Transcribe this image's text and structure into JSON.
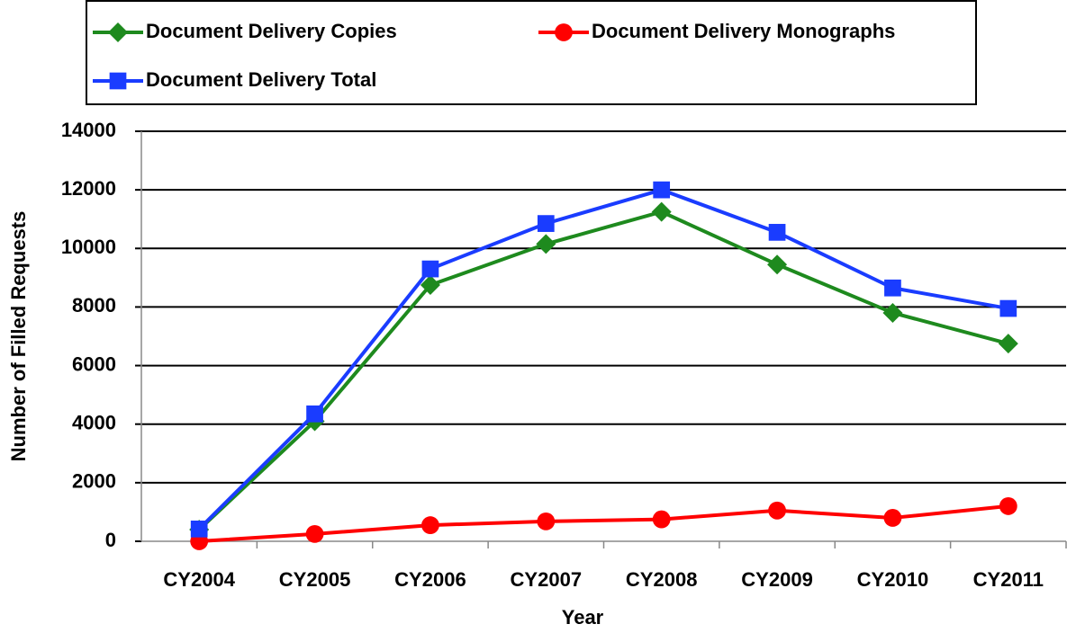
{
  "chart_data": {
    "type": "line",
    "x_label": "Year",
    "y_label": "Number of Filled Requests",
    "categories": [
      "CY2004",
      "CY2005",
      "CY2006",
      "CY2007",
      "CY2008",
      "CY2009",
      "CY2010",
      "CY2011"
    ],
    "series": [
      {
        "name": "Document Delivery Copies",
        "color": "#1e8a1e",
        "marker": "diamond",
        "values": [
          400,
          4100,
          8750,
          10150,
          11250,
          9450,
          7800,
          6750
        ]
      },
      {
        "name": "Document Delivery Monographs",
        "color": "#ff0000",
        "marker": "circle",
        "values": [
          0,
          250,
          550,
          680,
          750,
          1050,
          800,
          1200
        ]
      },
      {
        "name": "Document Delivery Total",
        "color": "#1a3cff",
        "marker": "square",
        "values": [
          420,
          4350,
          9300,
          10850,
          12000,
          10550,
          8650,
          7950
        ]
      }
    ],
    "ylim": [
      0,
      14000
    ],
    "yticks": [
      0,
      2000,
      4000,
      6000,
      8000,
      10000,
      12000,
      14000
    ],
    "grid": true,
    "legend": "top"
  }
}
